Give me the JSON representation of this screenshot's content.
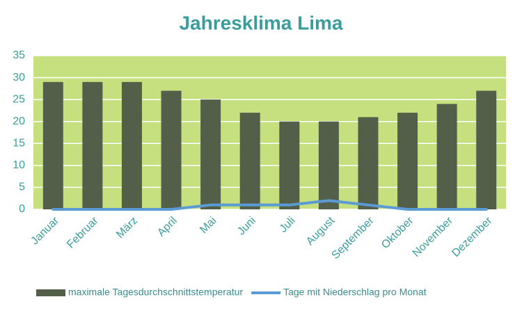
{
  "chart_data": {
    "type": "bar",
    "title": "Jahresklima Lima",
    "categories": [
      "Januar",
      "Februar",
      "März",
      "April",
      "Mai",
      "Juni",
      "Juli",
      "August",
      "September",
      "Oktober",
      "November",
      "Dezember"
    ],
    "series": [
      {
        "name": "maximale Tagesdurchschnittstemperatur",
        "type": "bar",
        "color": "#545f4a",
        "values": [
          29,
          29,
          29,
          27,
          25,
          22,
          20,
          20,
          21,
          22,
          24,
          27
        ]
      },
      {
        "name": "Tage mit Niederschlag pro Monat",
        "type": "line",
        "color": "#5b9bd5",
        "values": [
          0,
          0,
          0,
          0,
          1,
          1,
          1,
          2,
          1,
          0,
          0,
          0
        ]
      }
    ],
    "ylim": [
      0,
      35
    ],
    "yticks": [
      0,
      5,
      10,
      15,
      20,
      25,
      30,
      35
    ],
    "grid": true,
    "plot_background": "#c6df7f",
    "legend": "bottom"
  }
}
